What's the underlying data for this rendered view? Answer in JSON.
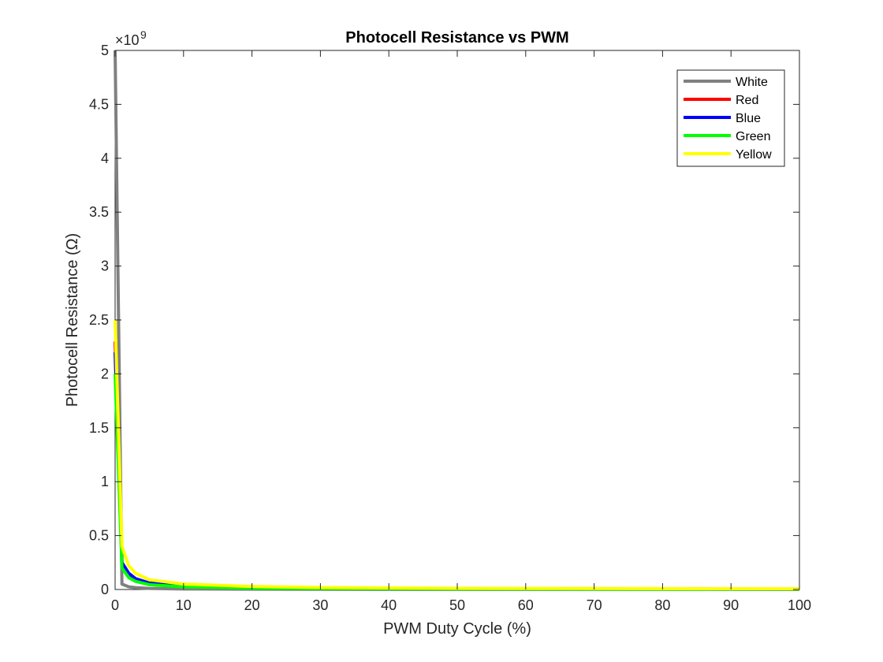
{
  "chart_data": {
    "type": "line",
    "title": "Photocell Resistance vs PWM",
    "xlabel": "PWM Duty Cycle (%)",
    "ylabel": "Photocell Resistance (Ω)",
    "exponent_label": "×10",
    "exponent_power": "9",
    "xlim": [
      0,
      100
    ],
    "ylim": [
      0,
      5
    ],
    "y_scale_factor": 1000000000,
    "xticks": [
      0,
      10,
      20,
      30,
      40,
      50,
      60,
      70,
      80,
      90,
      100
    ],
    "yticks": [
      0,
      0.5,
      1,
      1.5,
      2,
      2.5,
      3,
      3.5,
      4,
      4.5,
      5
    ],
    "ytick_labels": [
      "0",
      "0.5",
      "1",
      "1.5",
      "2",
      "2.5",
      "3",
      "3.5",
      "4",
      "4.5",
      "5"
    ],
    "grid": false,
    "legend_position": "top-right",
    "series": [
      {
        "name": "White",
        "color": "#808080",
        "x": [
          0,
          1,
          2,
          3,
          5,
          10,
          20,
          30,
          50,
          100
        ],
        "y": [
          5.0,
          0.05,
          0.025,
          0.017,
          0.01,
          0.005,
          0.0025,
          0.0017,
          0.001,
          0.0005
        ]
      },
      {
        "name": "Red",
        "color": "#ff0000",
        "x": [
          0,
          1,
          2,
          3,
          5,
          10,
          20,
          30,
          50,
          100
        ],
        "y": [
          2.3,
          0.25,
          0.14,
          0.09,
          0.055,
          0.03,
          0.015,
          0.01,
          0.006,
          0.003
        ]
      },
      {
        "name": "Blue",
        "color": "#0000ff",
        "x": [
          0,
          1,
          2,
          3,
          5,
          10,
          20,
          30,
          50,
          100
        ],
        "y": [
          2.2,
          0.25,
          0.15,
          0.1,
          0.06,
          0.03,
          0.015,
          0.01,
          0.006,
          0.003
        ]
      },
      {
        "name": "Green",
        "color": "#00ff00",
        "x": [
          0,
          1,
          2,
          3,
          5,
          10,
          20,
          30,
          50,
          100
        ],
        "y": [
          2.0,
          0.2,
          0.11,
          0.075,
          0.045,
          0.025,
          0.012,
          0.008,
          0.005,
          0.0025
        ]
      },
      {
        "name": "Yellow",
        "color": "#ffff00",
        "x": [
          0,
          1,
          2,
          3,
          5,
          10,
          20,
          30,
          50,
          100
        ],
        "y": [
          2.5,
          0.4,
          0.22,
          0.15,
          0.09,
          0.05,
          0.028,
          0.018,
          0.011,
          0.006
        ]
      }
    ]
  }
}
